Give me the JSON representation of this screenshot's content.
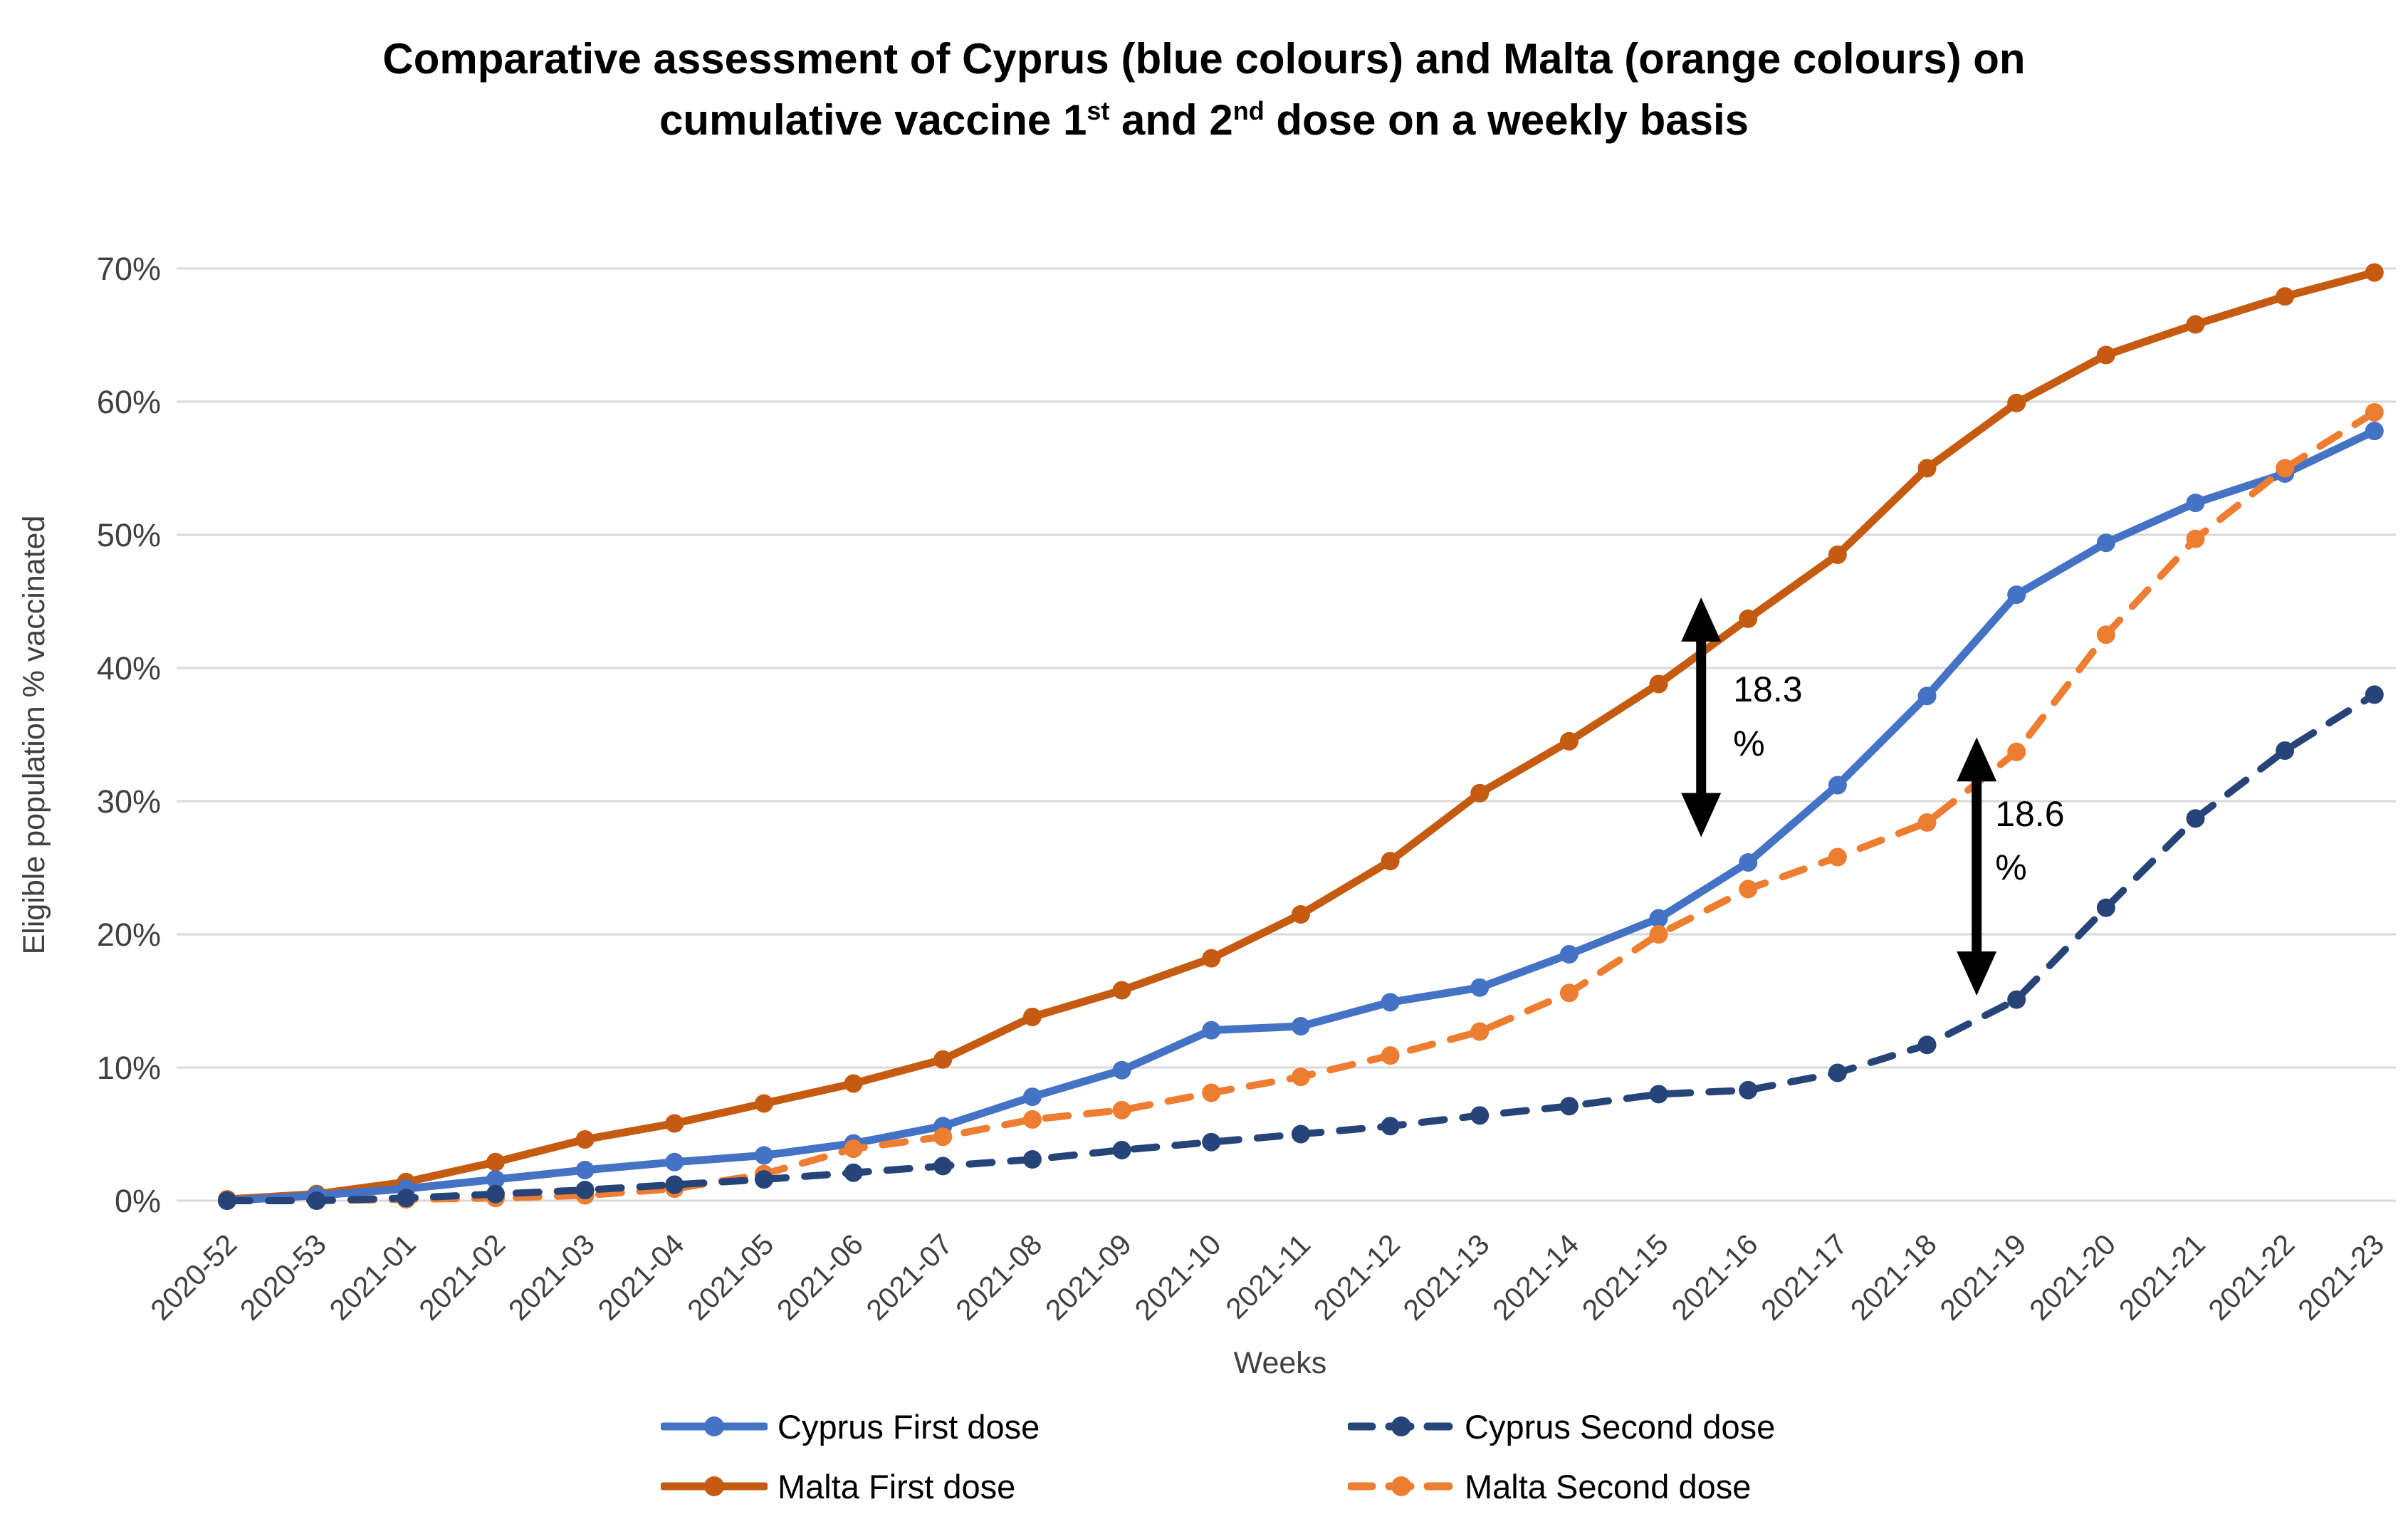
{
  "page": {
    "background": "#ffffff"
  },
  "title": {
    "line1": "Comparative assessment of Cyprus (blue colours) and Malta (orange colours) on",
    "line2_pre": "cumulative vaccine 1",
    "line2_sup1": "st",
    "line2_mid": " and 2",
    "line2_sup2": "nd",
    "line2_post": " dose on a weekly basis"
  },
  "colors": {
    "cyprus_first": "#4472C4",
    "cyprus_second": "#264478",
    "malta_first": "#C55A11",
    "malta_second": "#ED7D31",
    "gridline": "#D9D9D9",
    "axis_text": "#404040",
    "annotation": "#000000"
  },
  "chart_data": {
    "type": "line",
    "title": "Comparative assessment of Cyprus (blue colours) and Malta (orange colours) on cumulative vaccine 1st and 2nd dose on a weekly basis",
    "xlabel": "Weeks",
    "ylabel": "Eligible population % vaccinated",
    "ylim": [
      0,
      70
    ],
    "ytick_labels": [
      "0%",
      "10%",
      "20%",
      "30%",
      "40%",
      "50%",
      "60%",
      "70%"
    ],
    "grid": true,
    "legend_position": "bottom",
    "categories": [
      "2020-52",
      "2020-53",
      "2021-01",
      "2021-02",
      "2021-03",
      "2021-04",
      "2021-05",
      "2021-06",
      "2021-07",
      "2021-08",
      "2021-09",
      "2021-10",
      "2021-11",
      "2021-12",
      "2021-13",
      "2021-14",
      "2021-15",
      "2021-16",
      "2021-17",
      "2021-18",
      "2021-19",
      "2021-20",
      "2021-21",
      "2021-22",
      "2021-23"
    ],
    "series": [
      {
        "name": "Malta First dose",
        "key": "malta_first",
        "line": "solid",
        "values": [
          0.1,
          0.5,
          1.4,
          2.9,
          4.6,
          5.8,
          7.3,
          8.8,
          10.6,
          13.8,
          15.8,
          18.2,
          21.5,
          25.5,
          30.6,
          34.5,
          38.8,
          43.7,
          48.5,
          55.0,
          59.9,
          63.5,
          65.8,
          67.9,
          69.7
        ]
      },
      {
        "name": "Cyprus First dose",
        "key": "cyprus_first",
        "line": "solid",
        "values": [
          0.0,
          0.4,
          0.9,
          1.6,
          2.3,
          2.9,
          3.4,
          4.3,
          5.6,
          7.8,
          9.8,
          12.8,
          13.1,
          14.9,
          16.0,
          18.5,
          21.2,
          25.4,
          31.2,
          37.9,
          45.5,
          49.4,
          52.4,
          54.6,
          57.8
        ]
      },
      {
        "name": "Malta Second dose",
        "key": "malta_second",
        "line": "dashed",
        "values": [
          0.0,
          0.0,
          0.1,
          0.2,
          0.4,
          0.9,
          2.0,
          3.9,
          4.8,
          6.1,
          6.8,
          8.1,
          9.3,
          10.9,
          12.7,
          15.6,
          20.0,
          23.4,
          25.8,
          28.4,
          33.7,
          42.5,
          49.7,
          55.0,
          59.2
        ]
      },
      {
        "name": "Cyprus Second dose",
        "key": "cyprus_second",
        "line": "dashed",
        "values": [
          0.0,
          0.0,
          0.2,
          0.5,
          0.8,
          1.2,
          1.6,
          2.1,
          2.6,
          3.1,
          3.8,
          4.4,
          5.0,
          5.6,
          6.4,
          7.1,
          8.0,
          8.3,
          9.6,
          11.7,
          15.1,
          22.0,
          28.7,
          33.8,
          38.0
        ]
      }
    ],
    "annotations": [
      {
        "label_lines": [
          "18.3",
          "%"
        ],
        "week": "2021-16",
        "x_offset": -66,
        "from_value": 27.3,
        "to_value": 45.3,
        "text_dx": 45,
        "text_dy": [
          146,
          222
        ],
        "style": "double-arrow"
      },
      {
        "label_lines": [
          "18.6",
          "%"
        ],
        "week": "2021-19",
        "x_offset": -56,
        "from_value": 15.4,
        "to_value": 34.8,
        "text_dx": 26,
        "text_dy": [
          125,
          200
        ],
        "style": "double-arrow"
      }
    ]
  },
  "legend": {
    "items": [
      {
        "label": "Cyprus First dose",
        "key": "cyprus_first",
        "line": "solid"
      },
      {
        "label": "Cyprus Second dose",
        "key": "cyprus_second",
        "line": "dashed"
      },
      {
        "label": "Malta First dose",
        "key": "malta_first",
        "line": "solid"
      },
      {
        "label": "Malta Second dose",
        "key": "malta_second",
        "line": "dashed"
      }
    ]
  }
}
